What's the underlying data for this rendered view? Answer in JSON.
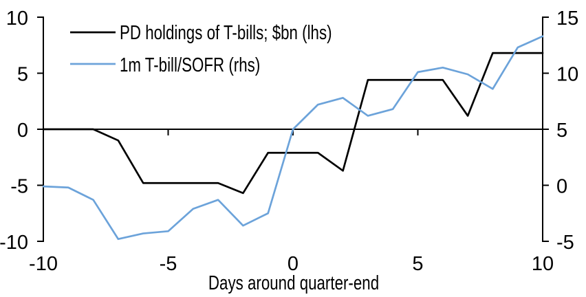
{
  "chart_data": {
    "type": "line",
    "title": "",
    "xlabel": "Days around quarter-end",
    "grid": false,
    "legend_position": "top-left",
    "x": [
      -10,
      -9,
      -8,
      -7,
      -6,
      -5,
      -4,
      -3,
      -2,
      -1,
      0,
      1,
      2,
      3,
      4,
      5,
      6,
      7,
      8,
      9,
      10
    ],
    "series": [
      {
        "name": "PD holdings of T-bills; $bn (lhs)",
        "axis": "left",
        "color": "#000000",
        "values": [
          0.0,
          0.0,
          0.0,
          -1.0,
          -4.8,
          -4.8,
          -4.8,
          -4.8,
          -5.7,
          -2.1,
          -2.1,
          -2.1,
          -3.7,
          4.4,
          4.4,
          4.4,
          4.4,
          1.2,
          6.8,
          6.8,
          6.8
        ]
      },
      {
        "name": "1m T-bill/SOFR (rhs)",
        "axis": "right",
        "color": "#6CA3DA",
        "values": [
          -0.1,
          -0.2,
          -1.3,
          -4.8,
          -4.3,
          -4.1,
          -2.1,
          -1.3,
          -3.6,
          -2.5,
          5.0,
          7.2,
          7.8,
          6.2,
          6.8,
          10.1,
          10.5,
          9.9,
          8.6,
          12.3,
          13.3
        ]
      }
    ],
    "left_axis": {
      "range": [
        -10,
        10
      ],
      "ticks": [
        10,
        5,
        0,
        -5,
        -10
      ]
    },
    "right_axis": {
      "range": [
        -5,
        15
      ],
      "ticks": [
        15,
        10,
        5,
        0,
        -5
      ]
    },
    "x_axis": {
      "range": [
        -10,
        10
      ],
      "ticks": [
        -10,
        -5,
        0,
        5,
        10
      ],
      "label": "Days around quarter-end"
    }
  },
  "colors": {
    "background": "#ffffff",
    "axis": "#000000",
    "text": "#000000"
  }
}
